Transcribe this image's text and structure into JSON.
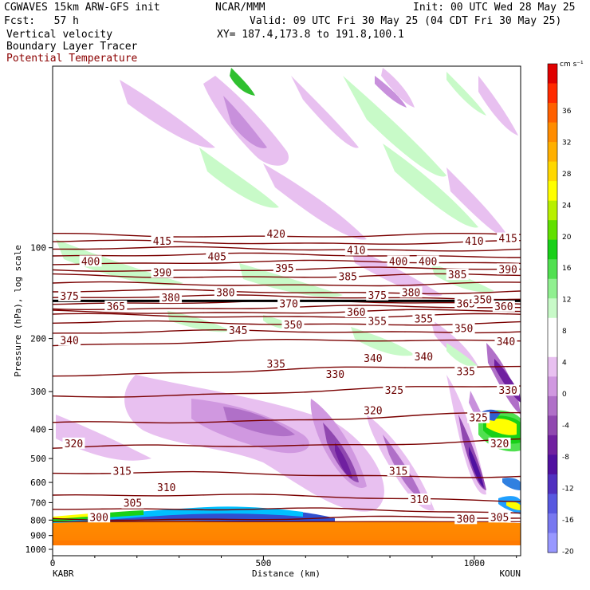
{
  "header": {
    "line1_left": "CGWAVES 15km ARW-GFS init",
    "line1_mid": "NCAR/MMM",
    "line1_right": "Init: 00 UTC Wed 28 May 25",
    "line2_left": "Fcst:   57 h",
    "line2_right": "Valid: 09 UTC Fri 30 May 25 (04 CDT Fri 30 May 25)",
    "line3_left": "Vertical velocity",
    "line3_right": "XY= 187.4,173.8 to 191.8,100.1",
    "line4_left": "Boundary Layer Tracer",
    "line5_left": "Potential Temperature"
  },
  "chart_data": {
    "type": "heatmap",
    "xlabel": "Distance (km)",
    "ylabel": "Pressure (hPa), log scale",
    "x_ticks": [
      0,
      500,
      1000
    ],
    "xlim": [
      0,
      1110
    ],
    "y_ticks": [
      100,
      200,
      300,
      400,
      500,
      600,
      700,
      800,
      900,
      1000
    ],
    "y_scale": "log",
    "endpoints": {
      "left": "KABR",
      "right": "KOUN"
    },
    "colorbar": {
      "unit": "cm s⁻¹",
      "labels": [
        "36",
        "32",
        "28",
        "24",
        "20",
        "16",
        "12",
        "8",
        "4",
        "0",
        "-4",
        "-8",
        "-12",
        "-16",
        "-20"
      ],
      "colors": [
        "#e00000",
        "#ff2a00",
        "#ff6000",
        "#ff8c00",
        "#ffb000",
        "#ffd800",
        "#ffff00",
        "#b8f000",
        "#60e000",
        "#18d018",
        "#50e050",
        "#90f090",
        "#c8fac8",
        "#ffffff",
        "#ffffff",
        "#e8c0f0",
        "#d098e0",
        "#b070c8",
        "#9048b0",
        "#7020a0",
        "#5010a0",
        "#5030c0",
        "#5858e0",
        "#7878f0",
        "#9898ff"
      ]
    },
    "theta_contours": [
      {
        "value": "300",
        "pressure": 790,
        "slope": 0.0
      },
      {
        "value": "305",
        "pressure": 740,
        "slope": 0.02
      },
      {
        "value": "310",
        "pressure": 670,
        "slope": 0.02
      },
      {
        "value": "315",
        "pressure": 565,
        "slope": 0.01
      },
      {
        "value": "320",
        "pressure": 450,
        "slope": -0.03
      },
      {
        "value": "325",
        "pressure": 370,
        "slope": -0.04
      },
      {
        "value": "330",
        "pressure": 300,
        "slope": -0.04
      },
      {
        "value": "335",
        "pressure": 255,
        "slope": -0.03
      },
      {
        "value": "340",
        "pressure": 205,
        "slope": -0.02
      },
      {
        "value": "345",
        "pressure": 190,
        "slope": -0.01
      },
      {
        "value": "350",
        "pressure": 178,
        "slope": 0.0
      },
      {
        "value": "355",
        "pressure": 168,
        "slope": 0.0
      },
      {
        "value": "360",
        "pressure": 163,
        "slope": 0.0
      },
      {
        "value": "365",
        "pressure": 158,
        "slope": 0.0
      },
      {
        "value": "370",
        "pressure": 152,
        "slope": 0.0
      },
      {
        "value": "375",
        "pressure": 146,
        "slope": 0.0
      },
      {
        "value": "380",
        "pressure": 140,
        "slope": 0.0
      },
      {
        "value": "385",
        "pressure": 132,
        "slope": 0.0
      },
      {
        "value": "390",
        "pressure": 124,
        "slope": 0.0
      },
      {
        "value": "395",
        "pressure": 118,
        "slope": 0.0
      },
      {
        "value": "400",
        "pressure": 112,
        "slope": 0.0
      },
      {
        "value": "405",
        "pressure": 106,
        "slope": 0.0
      },
      {
        "value": "410",
        "pressure": 101,
        "slope": 0.0
      },
      {
        "value": "415",
        "pressure": 96,
        "slope": 0.0
      },
      {
        "value": "420",
        "pressure": 91,
        "slope": 0.0
      }
    ],
    "contour_labels": [
      {
        "text": "415",
        "d": 260,
        "p": 96
      },
      {
        "text": "420",
        "d": 530,
        "p": 91
      },
      {
        "text": "410",
        "d": 1000,
        "p": 96
      },
      {
        "text": "415",
        "d": 1080,
        "p": 94
      },
      {
        "text": "400",
        "d": 90,
        "p": 112
      },
      {
        "text": "405",
        "d": 390,
        "p": 108
      },
      {
        "text": "410",
        "d": 720,
        "p": 103
      },
      {
        "text": "400",
        "d": 820,
        "p": 112
      },
      {
        "text": "400",
        "d": 890,
        "p": 112
      },
      {
        "text": "390",
        "d": 260,
        "p": 122
      },
      {
        "text": "395",
        "d": 550,
        "p": 118
      },
      {
        "text": "385",
        "d": 700,
        "p": 126
      },
      {
        "text": "385",
        "d": 960,
        "p": 124
      },
      {
        "text": "390",
        "d": 1080,
        "p": 119
      },
      {
        "text": "375",
        "d": 40,
        "p": 146
      },
      {
        "text": "380",
        "d": 410,
        "p": 142
      },
      {
        "text": "375",
        "d": 770,
        "p": 145
      },
      {
        "text": "380",
        "d": 850,
        "p": 142
      },
      {
        "text": "365",
        "d": 150,
        "p": 158
      },
      {
        "text": "370",
        "d": 560,
        "p": 155
      },
      {
        "text": "360",
        "d": 720,
        "p": 165
      },
      {
        "text": "365",
        "d": 980,
        "p": 155
      },
      {
        "text": "360",
        "d": 1070,
        "p": 158
      },
      {
        "text": "340",
        "d": 40,
        "p": 205
      },
      {
        "text": "345",
        "d": 440,
        "p": 190
      },
      {
        "text": "350",
        "d": 570,
        "p": 182
      },
      {
        "text": "355",
        "d": 770,
        "p": 177
      },
      {
        "text": "355",
        "d": 880,
        "p": 174
      },
      {
        "text": "350",
        "d": 975,
        "p": 187
      },
      {
        "text": "340",
        "d": 1075,
        "p": 207
      },
      {
        "text": "335",
        "d": 530,
        "p": 245
      },
      {
        "text": "340",
        "d": 760,
        "p": 235
      },
      {
        "text": "340",
        "d": 880,
        "p": 232
      },
      {
        "text": "335",
        "d": 980,
        "p": 260
      },
      {
        "text": "330",
        "d": 670,
        "p": 265
      },
      {
        "text": "325",
        "d": 810,
        "p": 300
      },
      {
        "text": "330",
        "d": 1080,
        "p": 300
      },
      {
        "text": "320",
        "d": 760,
        "p": 350
      },
      {
        "text": "325",
        "d": 1010,
        "p": 370
      },
      {
        "text": "320",
        "d": 50,
        "p": 450
      },
      {
        "text": "320",
        "d": 1060,
        "p": 450
      },
      {
        "text": "315",
        "d": 165,
        "p": 555
      },
      {
        "text": "315",
        "d": 820,
        "p": 555
      },
      {
        "text": "310",
        "d": 270,
        "p": 630
      },
      {
        "text": "310",
        "d": 870,
        "p": 690
      },
      {
        "text": "305",
        "d": 190,
        "p": 710
      },
      {
        "text": "300",
        "d": 110,
        "p": 790
      },
      {
        "text": "300",
        "d": 980,
        "p": 800
      },
      {
        "text": "305",
        "d": 1060,
        "p": 790
      },
      {
        "text": "380",
        "d": 280,
        "p": 148
      },
      {
        "text": "350",
        "d": 1020,
        "p": 150
      }
    ],
    "tropopause_pressure": 150,
    "surface_pressure": 800
  }
}
